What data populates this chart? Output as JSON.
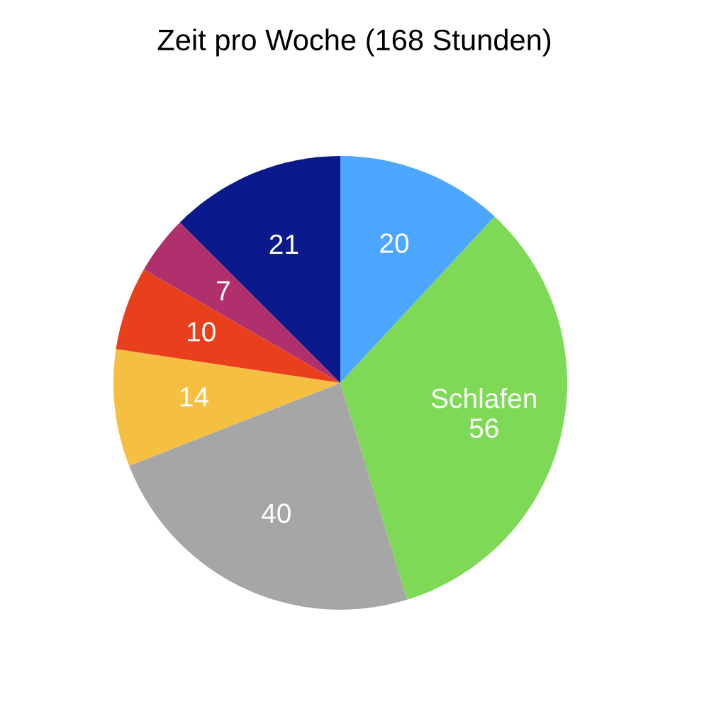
{
  "chart_data": {
    "type": "pie",
    "title": "Zeit pro Woche (168 Stunden)",
    "categories": [
      null,
      "Schlafen",
      null,
      null,
      null,
      null,
      null
    ],
    "values": [
      20,
      56,
      40,
      14,
      10,
      7,
      21
    ],
    "colors": [
      "#4da6ff",
      "#7ed957",
      "#a6a6a6",
      "#f5bf42",
      "#e8401c",
      "#b0306e",
      "#0a1a8c"
    ],
    "data_labels": true
  }
}
